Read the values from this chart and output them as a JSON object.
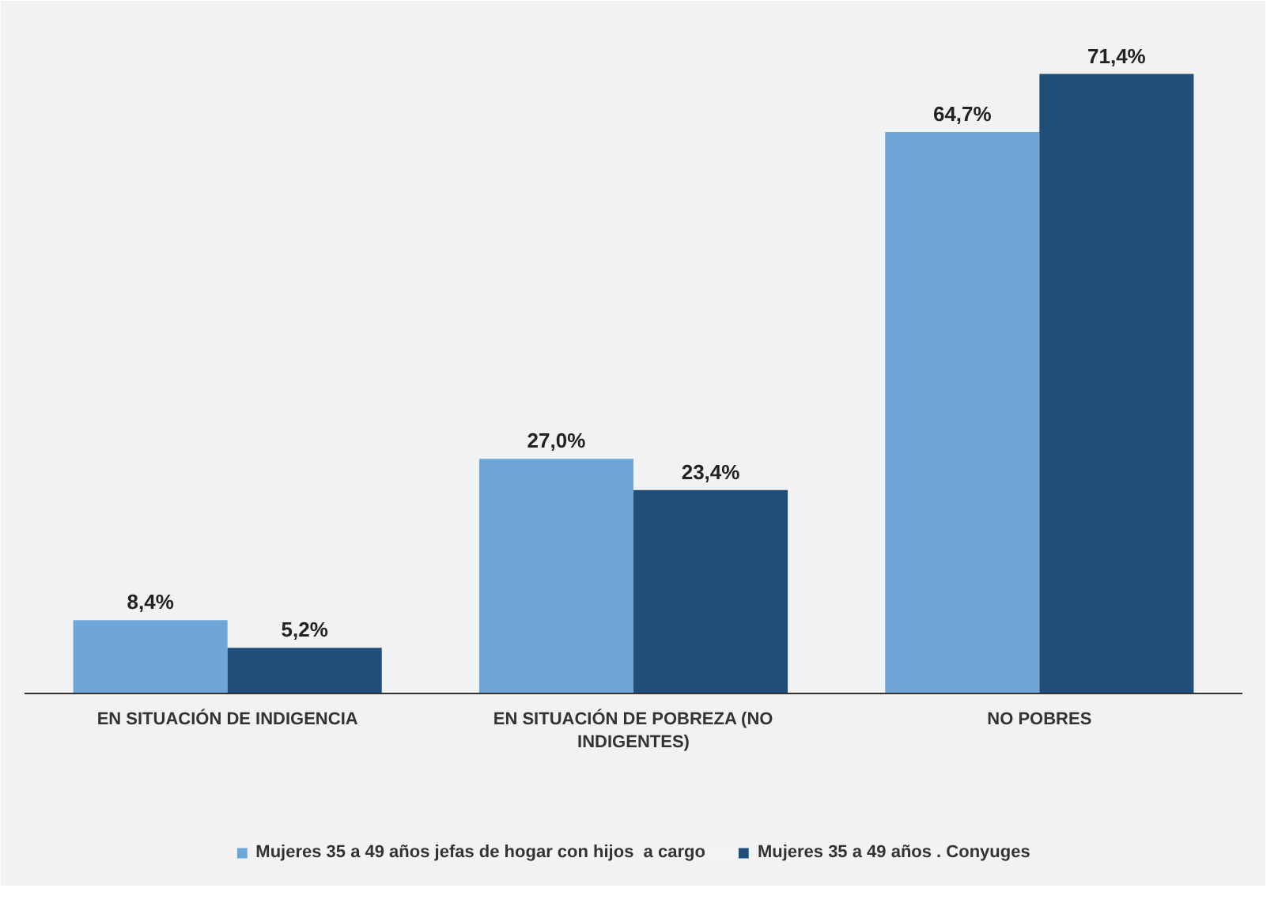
{
  "chart_data": {
    "type": "bar",
    "categories": [
      "EN SITUACIÓN DE INDIGENCIA",
      "EN SITUACIÓN DE POBREZA (NO\nINDIGENTES)",
      "NO POBRES"
    ],
    "series": [
      {
        "name": "Mujeres 35 a 49 años jefas de hogar con hijos  a cargo",
        "color": "#6fa6d8",
        "values": [
          8.4,
          27.0,
          64.7
        ],
        "value_labels": [
          "8,4%",
          "27,0%",
          "64,7%"
        ]
      },
      {
        "name": "Mujeres 35 a 49 años . Conyuges",
        "color": "#1f4e79",
        "values": [
          5.2,
          23.4,
          71.4
        ],
        "value_labels": [
          "5,2%",
          "23,4%",
          "71,4%"
        ]
      }
    ],
    "legend": "bottom",
    "grid": false
  }
}
